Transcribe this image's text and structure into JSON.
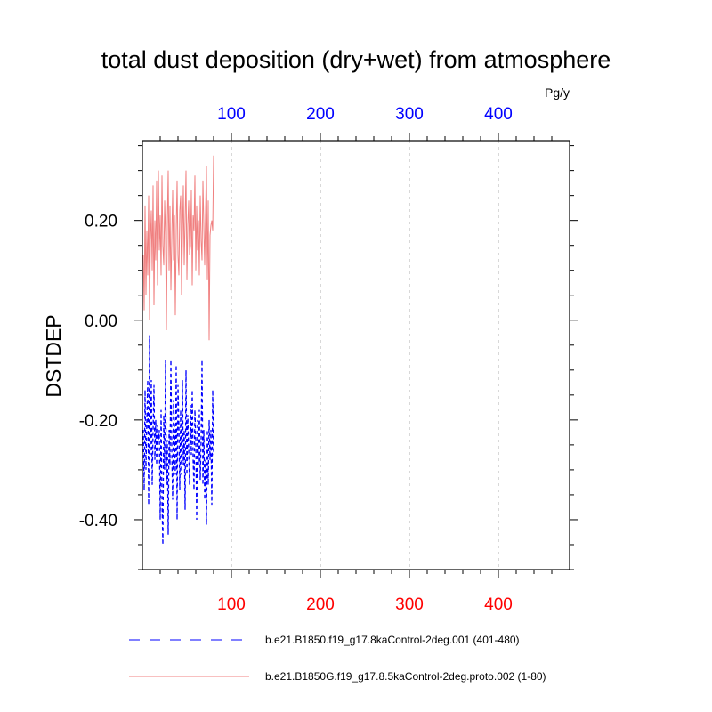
{
  "chart_data": {
    "type": "line",
    "title": "total dust deposition (dry+wet) from atmosphere",
    "units_label": "Pg/y",
    "ylabel": "DSTDEP",
    "xlim": [
      0,
      480
    ],
    "ylim": [
      -0.5,
      0.36
    ],
    "y_ticks": [
      {
        "value": 0.2,
        "label": "0.20"
      },
      {
        "value": 0.0,
        "label": "0.00"
      },
      {
        "value": -0.2,
        "label": "-0.20"
      },
      {
        "value": -0.4,
        "label": "-0.40"
      }
    ],
    "x_ticks_bottom": [
      {
        "value": 100,
        "label": "100"
      },
      {
        "value": 200,
        "label": "200"
      },
      {
        "value": 300,
        "label": "300"
      },
      {
        "value": 400,
        "label": "400"
      }
    ],
    "x_ticks_top": [
      {
        "value": 100,
        "label": "100"
      },
      {
        "value": 200,
        "label": "200"
      },
      {
        "value": 300,
        "label": "300"
      },
      {
        "value": 400,
        "label": "400"
      }
    ],
    "bottom_axis_color": "#ff0000",
    "top_axis_color": "#0000ff",
    "grid": "vertical dashed at major x ticks",
    "series": [
      {
        "name": "b.e21.B1850.f19_g17.8kaControl-2deg.001 (401-480)",
        "color": "#0000ff",
        "style": "dashed",
        "x": [
          1,
          2,
          3,
          4,
          5,
          6,
          7,
          8,
          9,
          10,
          11,
          12,
          13,
          14,
          15,
          16,
          17,
          18,
          19,
          20,
          21,
          22,
          23,
          24,
          25,
          26,
          27,
          28,
          29,
          30,
          31,
          32,
          33,
          34,
          35,
          36,
          37,
          38,
          39,
          40,
          41,
          42,
          43,
          44,
          45,
          46,
          47,
          48,
          49,
          50,
          51,
          52,
          53,
          54,
          55,
          56,
          57,
          58,
          59,
          60,
          61,
          62,
          63,
          64,
          65,
          66,
          67,
          68,
          69,
          70,
          71,
          72,
          73,
          74,
          75,
          76,
          77,
          78,
          79,
          80
        ],
        "values": [
          -0.22,
          -0.34,
          -0.14,
          -0.3,
          -0.2,
          -0.12,
          -0.37,
          -0.03,
          -0.27,
          -0.12,
          -0.33,
          -0.22,
          -0.13,
          -0.28,
          -0.2,
          -0.29,
          -0.21,
          -0.24,
          -0.22,
          -0.4,
          -0.18,
          -0.36,
          -0.45,
          -0.19,
          -0.3,
          -0.08,
          -0.33,
          -0.24,
          -0.43,
          -0.22,
          -0.29,
          -0.08,
          -0.26,
          -0.36,
          -0.16,
          -0.22,
          -0.31,
          -0.09,
          -0.4,
          -0.13,
          -0.21,
          -0.34,
          -0.18,
          -0.31,
          -0.12,
          -0.29,
          -0.22,
          -0.38,
          -0.1,
          -0.31,
          -0.19,
          -0.26,
          -0.33,
          -0.17,
          -0.27,
          -0.14,
          -0.28,
          -0.34,
          -0.18,
          -0.24,
          -0.4,
          -0.2,
          -0.29,
          -0.18,
          -0.32,
          -0.24,
          -0.08,
          -0.33,
          -0.22,
          -0.36,
          -0.28,
          -0.41,
          -0.22,
          -0.33,
          -0.2,
          -0.28,
          -0.22,
          -0.37,
          -0.14,
          -0.27
        ]
      },
      {
        "name": "b.e21.B1850G.f19_g17.8.5kaControl-2deg.proto.002 (1-80)",
        "color": "#f08080",
        "style": "solid",
        "x": [
          1,
          2,
          3,
          4,
          5,
          6,
          7,
          8,
          9,
          10,
          11,
          12,
          13,
          14,
          15,
          16,
          17,
          18,
          19,
          20,
          21,
          22,
          23,
          24,
          25,
          26,
          27,
          28,
          29,
          30,
          31,
          32,
          33,
          34,
          35,
          36,
          37,
          38,
          39,
          40,
          41,
          42,
          43,
          44,
          45,
          46,
          47,
          48,
          49,
          50,
          51,
          52,
          53,
          54,
          55,
          56,
          57,
          58,
          59,
          60,
          61,
          62,
          63,
          64,
          65,
          66,
          67,
          68,
          69,
          70,
          71,
          72,
          73,
          74,
          75,
          76,
          77,
          78,
          79,
          80
        ],
        "values": [
          0.13,
          0.02,
          0.23,
          0.05,
          0.18,
          0.09,
          0.25,
          0.0,
          0.16,
          0.22,
          0.1,
          0.27,
          0.03,
          0.2,
          0.12,
          0.28,
          0.07,
          0.3,
          0.14,
          0.21,
          0.09,
          0.29,
          0.15,
          0.11,
          0.24,
          0.17,
          -0.02,
          0.19,
          0.3,
          0.1,
          0.23,
          0.06,
          0.16,
          0.26,
          0.12,
          0.21,
          0.01,
          0.18,
          0.28,
          0.13,
          0.09,
          0.22,
          0.25,
          0.05,
          0.17,
          0.27,
          0.11,
          0.2,
          0.3,
          0.08,
          0.19,
          0.24,
          0.13,
          0.15,
          0.26,
          0.07,
          0.21,
          0.18,
          0.29,
          0.1,
          0.23,
          0.14,
          0.2,
          0.09,
          0.25,
          0.16,
          0.12,
          0.28,
          0.19,
          0.11,
          0.22,
          0.31,
          0.08,
          0.24,
          -0.04,
          0.17,
          0.19,
          0.2,
          0.18,
          0.33
        ]
      }
    ],
    "legend": {
      "placement": "below plot",
      "entries": [
        {
          "label": "b.e21.B1850.f19_g17.8kaControl-2deg.001 (401-480)",
          "color": "#0000ff",
          "style": "dashed"
        },
        {
          "label": "b.e21.B1850G.f19_g17.8.5kaControl-2deg.proto.002 (1-80)",
          "color": "#f08080",
          "style": "solid"
        }
      ]
    }
  }
}
